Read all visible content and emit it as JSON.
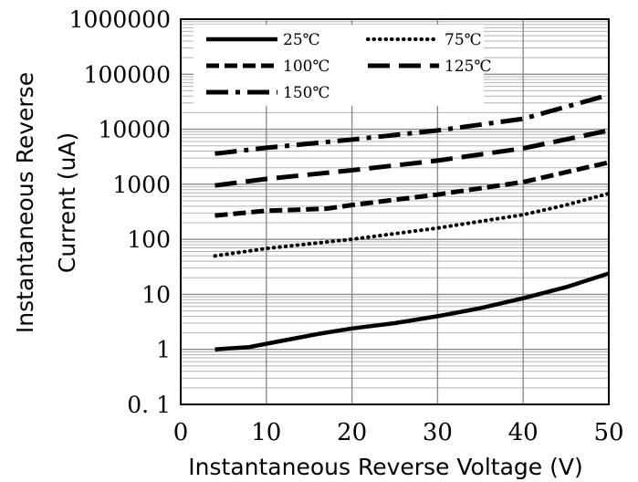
{
  "chart_data": {
    "type": "line",
    "title": "",
    "xlabel": "Instantaneous Reverse Voltage (V)",
    "ylabel_lines": [
      "Instantaneous Reverse",
      "Current (uA)"
    ],
    "xlim": [
      0,
      50
    ],
    "ylim": [
      0.1,
      1000000
    ],
    "yscale": "log",
    "grid": true,
    "legend_position": "top-left",
    "x_ticks": [
      "0",
      "10",
      "20",
      "30",
      "40",
      "50"
    ],
    "y_ticks": [
      "0. 1",
      "1",
      "10",
      "100",
      "1000",
      "10000",
      "100000",
      "1000000"
    ],
    "series": [
      {
        "name": "25℃",
        "style": "solid",
        "x": [
          4,
          8,
          12,
          16,
          20,
          25,
          30,
          35,
          40,
          45,
          50
        ],
        "y": [
          1.0,
          1.1,
          1.45,
          1.9,
          2.4,
          3.0,
          4.0,
          5.6,
          8.5,
          13.5,
          24
        ]
      },
      {
        "name": "75℃",
        "style": "dotted",
        "x": [
          4,
          10,
          20,
          30,
          40,
          45,
          50
        ],
        "y": [
          50,
          68,
          100,
          160,
          280,
          420,
          680
        ]
      },
      {
        "name": "100℃",
        "style": "dashed",
        "x": [
          4,
          10,
          17,
          20,
          30,
          40,
          50
        ],
        "y": [
          270,
          330,
          360,
          420,
          650,
          1100,
          2500
        ]
      },
      {
        "name": "125℃",
        "style": "longdash",
        "x": [
          4,
          10,
          20,
          30,
          40,
          50
        ],
        "y": [
          950,
          1250,
          1800,
          2700,
          4500,
          9500
        ]
      },
      {
        "name": "150℃",
        "style": "dashdot",
        "x": [
          4,
          10,
          20,
          30,
          40,
          50
        ],
        "y": [
          3600,
          4600,
          6500,
          9500,
          15500,
          42000
        ]
      }
    ]
  }
}
